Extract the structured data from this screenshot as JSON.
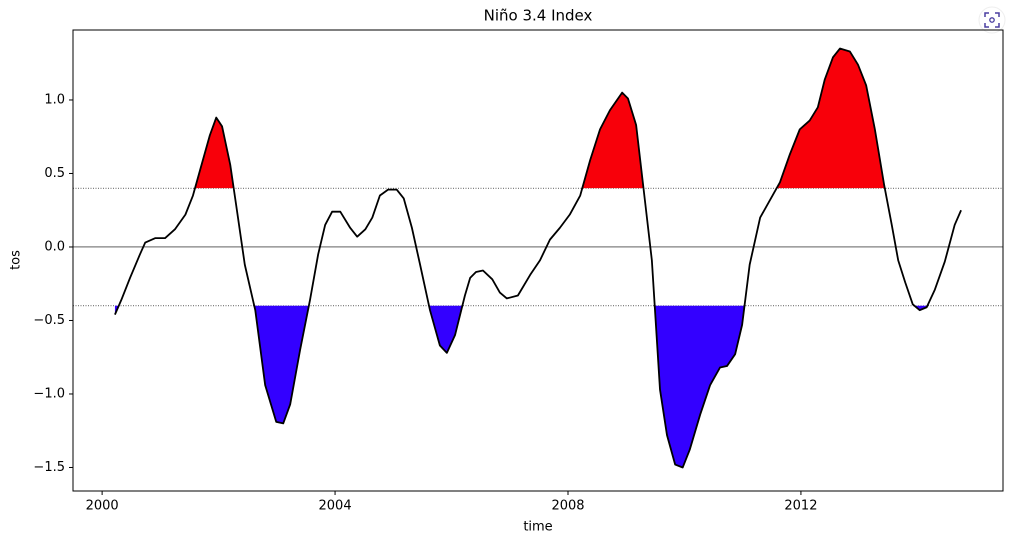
{
  "chart_data": {
    "type": "line",
    "title": "Niño 3.4 Index",
    "xlabel": "time",
    "ylabel": "tos",
    "line_color": "#000000",
    "above_color": "#f8000a",
    "below_color": "#3300ff",
    "thresholds": [
      -0.4,
      0.4
    ],
    "xlim": [
      1999.5,
      2015.47
    ],
    "ylim": [
      -1.66,
      1.476
    ],
    "xticks": [
      2000,
      2004,
      2008,
      2012
    ],
    "yticks": [
      {
        "value": -1.5,
        "label": "−1.5"
      },
      {
        "value": -1.0,
        "label": "−1.0"
      },
      {
        "value": -0.5,
        "label": "−0.5"
      },
      {
        "value": 0,
        "label": "0.0"
      },
      0.5,
      {
        "value": 1.0,
        "label": "1.0"
      }
    ],
    "x": [
      2000.22,
      2000.33,
      2000.48,
      2000.65,
      2000.74,
      2000.91,
      2001.08,
      2001.25,
      2001.43,
      2001.56,
      2001.68,
      2001.85,
      2001.96,
      2002.06,
      2002.2,
      2002.3,
      2002.45,
      2002.63,
      2002.8,
      2002.99,
      2003.11,
      2003.23,
      2003.4,
      2003.57,
      2003.71,
      2003.83,
      2003.95,
      2004.09,
      2004.26,
      2004.38,
      2004.52,
      2004.64,
      2004.77,
      2004.91,
      2005.06,
      2005.18,
      2005.32,
      2005.46,
      2005.63,
      2005.8,
      2005.92,
      2006.06,
      2006.23,
      2006.32,
      2006.42,
      2006.54,
      2006.7,
      2006.83,
      2006.95,
      2007.14,
      2007.35,
      2007.52,
      2007.69,
      2007.86,
      2008.03,
      2008.21,
      2008.38,
      2008.55,
      2008.72,
      2008.93,
      2009.03,
      2009.17,
      2009.32,
      2009.44,
      2009.58,
      2009.7,
      2009.84,
      2009.97,
      2010.09,
      2010.27,
      2010.44,
      2010.61,
      2010.73,
      2010.87,
      2010.99,
      2011.12,
      2011.3,
      2011.47,
      2011.64,
      2011.81,
      2011.98,
      2012.15,
      2012.29,
      2012.41,
      2012.55,
      2012.67,
      2012.84,
      2012.98,
      2013.12,
      2013.27,
      2013.43,
      2013.56,
      2013.67,
      2013.79,
      2013.92,
      2014.04,
      2014.16,
      2014.3,
      2014.47,
      2014.64,
      2014.75
    ],
    "values": [
      -0.46,
      -0.36,
      -0.21,
      -0.05,
      0.03,
      0.06,
      0.06,
      0.12,
      0.22,
      0.35,
      0.52,
      0.76,
      0.88,
      0.82,
      0.56,
      0.29,
      -0.12,
      -0.43,
      -0.94,
      -1.19,
      -1.2,
      -1.07,
      -0.7,
      -0.36,
      -0.05,
      0.15,
      0.24,
      0.24,
      0.13,
      0.07,
      0.12,
      0.2,
      0.35,
      0.39,
      0.39,
      0.33,
      0.13,
      -0.12,
      -0.43,
      -0.67,
      -0.72,
      -0.6,
      -0.33,
      -0.21,
      -0.17,
      -0.16,
      -0.22,
      -0.31,
      -0.35,
      -0.33,
      -0.19,
      -0.09,
      0.05,
      0.13,
      0.22,
      0.35,
      0.59,
      0.8,
      0.93,
      1.05,
      1.01,
      0.83,
      0.32,
      -0.09,
      -0.97,
      -1.28,
      -1.48,
      -1.5,
      -1.38,
      -1.14,
      -0.94,
      -0.82,
      -0.81,
      -0.73,
      -0.53,
      -0.12,
      0.2,
      0.32,
      0.44,
      0.63,
      0.8,
      0.86,
      0.95,
      1.14,
      1.29,
      1.35,
      1.33,
      1.24,
      1.1,
      0.8,
      0.42,
      0.15,
      -0.09,
      -0.24,
      -0.39,
      -0.43,
      -0.41,
      -0.29,
      -0.1,
      0.15,
      0.25
    ]
  }
}
